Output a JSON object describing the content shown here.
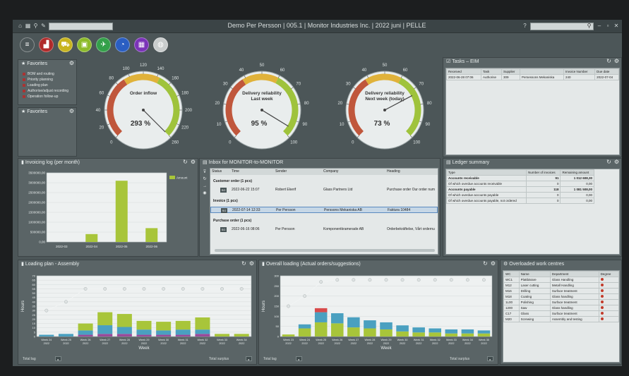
{
  "app": {
    "title": "Demo Per Persson | 005.1 | Monitor Industries Inc. | 2022 juni | PELLE"
  },
  "toolbar": {
    "tools": [
      {
        "icon": "menu-icon",
        "color": "#4c5658"
      },
      {
        "icon": "factory-icon",
        "color": "#b02a2a"
      },
      {
        "icon": "cart-icon",
        "color": "#c8b41e"
      },
      {
        "icon": "briefcase-icon",
        "color": "#8dbb2a"
      },
      {
        "icon": "plane-icon",
        "color": "#34a04a"
      },
      {
        "icon": "pie-icon",
        "color": "#2a5ec2"
      },
      {
        "icon": "calculator-icon",
        "color": "#7b33b8"
      },
      {
        "icon": "globe-icon",
        "color": "#c9cdcd"
      }
    ]
  },
  "favorites1": {
    "title": "Favorites",
    "items": [
      "BOM and routing",
      "Priority planning",
      "Loading plan",
      "Authorise/adjust recording",
      "Operation follow-up"
    ]
  },
  "favorites2": {
    "title": "Favorites"
  },
  "gauges": [
    {
      "title": "Order inflow",
      "value": "293 %",
      "ticks": [
        "0",
        "20",
        "40",
        "60",
        "80",
        "100",
        "120",
        "140",
        "160",
        "180",
        "200",
        "220",
        "260"
      ],
      "needle": 293,
      "max": 260
    },
    {
      "title": "Delivery reliability - Last week",
      "value": "95 %",
      "ticks": [
        "0",
        "10",
        "20",
        "30",
        "40",
        "50",
        "60",
        "70",
        "80",
        "90",
        "100"
      ],
      "needle": 95,
      "max": 100
    },
    {
      "title": "Delivery reliability - Next week (today)",
      "value": "73 %",
      "ticks": [
        "0",
        "10",
        "20",
        "30",
        "40",
        "50",
        "60",
        "70",
        "80",
        "90",
        "100"
      ],
      "needle": 73,
      "max": 100
    }
  ],
  "tasks": {
    "title": "Tasks – EIM",
    "columns": [
      "Received",
      "Task",
      "Supplier",
      "",
      "Invoice Number",
      "Due date"
    ],
    "rows": [
      [
        "2022-06-28 07:06",
        "Authorise",
        "309",
        "Persessons Mekaniska",
        "240",
        "2022-07-04"
      ]
    ]
  },
  "invoicing": {
    "title": "Invoicing log (per month)",
    "legend": "Amount",
    "chart_data": {
      "type": "bar",
      "categories": [
        "2022-03",
        "2022-04",
        "2022-05",
        "2022-06"
      ],
      "values": [
        0,
        400000,
        3100000,
        700000
      ],
      "ylim": [
        0,
        3500000
      ],
      "yticks": [
        "0,00",
        "500000,00",
        "1000000,00",
        "1500000,00",
        "2000000,00",
        "2500000,00",
        "3000000,00",
        "3500000,00"
      ],
      "color": "#a8c53a"
    }
  },
  "inbox": {
    "title": "Inbox for MONITOR-to-MONITOR",
    "columns": [
      "Status",
      "Time",
      "Sender",
      "Company",
      "Heading"
    ],
    "groups": [
      {
        "label": "Customer order (1 pcs)",
        "rows": [
          [
            "SG",
            "2022-06-22 15:07",
            "Robert Ekerif",
            "Glass Partners Ltd",
            "Purchase order   Our order num"
          ]
        ]
      },
      {
        "label": "Invoice (1 pcs)",
        "rows": [
          [
            "SG",
            "2022-07-14 12:33",
            "Per Persson",
            "Perssons Mekaniska AB",
            "Faktura   10484"
          ]
        ]
      },
      {
        "label": "Purchase order (1 pcs)",
        "rows": [
          [
            "SG",
            "2022-06-16 08:06",
            "Per Persson",
            "Komponentkramerade AB",
            "Orderbekräftelse, Vårt ordernu"
          ]
        ]
      }
    ]
  },
  "ledger": {
    "title": "Ledger summary",
    "columns": [
      "Type",
      "Number of invoices",
      "Remaining amount"
    ],
    "rows": [
      [
        "Accounts receivable",
        "91",
        "1 012 608,30"
      ],
      [
        "Of which overdue accounts receivable",
        "0",
        "0,00"
      ],
      [
        "Accounts payable",
        "118",
        "1 081 508,00"
      ],
      [
        "Of which overdue accounts payable",
        "0",
        "0,00"
      ],
      [
        "Of which overdue accounts payable, not ordered",
        "0",
        "0,00"
      ]
    ]
  },
  "loading_assembly": {
    "title": "Loading plan - Assembly",
    "ylabel": "Hours",
    "xlabel": "Week",
    "footer_left": "Total lag",
    "footer_right": "Total surplus",
    "chart_data": {
      "type": "bar",
      "categories": [
        "Week 24 2022",
        "Week 25 2022",
        "Week 26 2022",
        "Week 27 2022",
        "Week 28 2022",
        "Week 29 2022",
        "Week 30 2022",
        "Week 31 2022",
        "Week 32 2022",
        "Week 33 2022",
        "Week 34 2022"
      ],
      "yticks": [
        "0",
        "5",
        "10",
        "15",
        "20",
        "25",
        "30",
        "35",
        "40",
        "45",
        "50",
        "55",
        "60",
        "65",
        "70"
      ],
      "ylim": [
        0,
        70
      ],
      "series": [
        {
          "color": "#9a4a9a",
          "values": [
            0,
            0,
            2,
            3,
            3,
            2,
            2,
            2,
            3,
            0,
            0
          ]
        },
        {
          "color": "#4aa0c0",
          "values": [
            2,
            3,
            5,
            10,
            8,
            6,
            5,
            6,
            5,
            0,
            0
          ]
        },
        {
          "color": "#a8c53a",
          "values": [
            0,
            0,
            8,
            15,
            15,
            10,
            10,
            10,
            14,
            3,
            3
          ]
        }
      ],
      "capacity": [
        30,
        40,
        55,
        55,
        55,
        55,
        55,
        55,
        55,
        55,
        55
      ]
    }
  },
  "overall_loading": {
    "title": "Overall loading (Actual orders/suggestions)",
    "ylabel": "Hours",
    "xlabel": "Week",
    "footer_left": "Total lag",
    "footer_right": "Total surplus",
    "chart_data": {
      "type": "bar",
      "categories": [
        "Week 23 2022",
        "Week 24 2022",
        "Week 25 2022",
        "Week 26 2022",
        "Week 27 2022",
        "Week 28 2022",
        "Week 29 2022",
        "Week 30 2022",
        "Week 31 2022",
        "Week 32 2022",
        "Week 33 2022",
        "Week 34 2022",
        "Week 35 2022"
      ],
      "yticks": [
        "0",
        "50",
        "100",
        "150",
        "200",
        "250",
        "300"
      ],
      "ylim": [
        0,
        300
      ],
      "series": [
        {
          "color": "#a8c53a",
          "values": [
            10,
            40,
            70,
            65,
            45,
            40,
            35,
            25,
            20,
            20,
            15,
            15,
            15
          ]
        },
        {
          "color": "#4aa0c0",
          "values": [
            0,
            20,
            50,
            50,
            50,
            40,
            35,
            30,
            25,
            20,
            20,
            20,
            15
          ]
        },
        {
          "color": "#d84a4a",
          "values": [
            0,
            0,
            20,
            0,
            0,
            0,
            0,
            0,
            0,
            0,
            0,
            0,
            0
          ]
        }
      ],
      "capacity": [
        150,
        200,
        270,
        280,
        280,
        280,
        280,
        280,
        280,
        280,
        280,
        280,
        280
      ]
    }
  },
  "overloaded": {
    "title": "Overloaded work centres",
    "columns": [
      "WC",
      "Name",
      "Department",
      "Degree"
    ],
    "rows": [
      [
        "WC1",
        "Plattbärare",
        "Glass Handling"
      ],
      [
        "M12",
        "Laser cutting",
        "Metall Handling"
      ],
      [
        "M16",
        "Drilling",
        "Surface treatment"
      ],
      [
        "M18",
        "Coating",
        "Glass handling"
      ],
      [
        "1L00",
        "Polishing",
        "Surface treatment"
      ],
      [
        "1200",
        "Saw",
        "Glass handling"
      ],
      [
        "C17",
        "Glass",
        "Surface treatment"
      ],
      [
        "M20",
        "Screwing",
        "Assembly and testing"
      ]
    ]
  }
}
